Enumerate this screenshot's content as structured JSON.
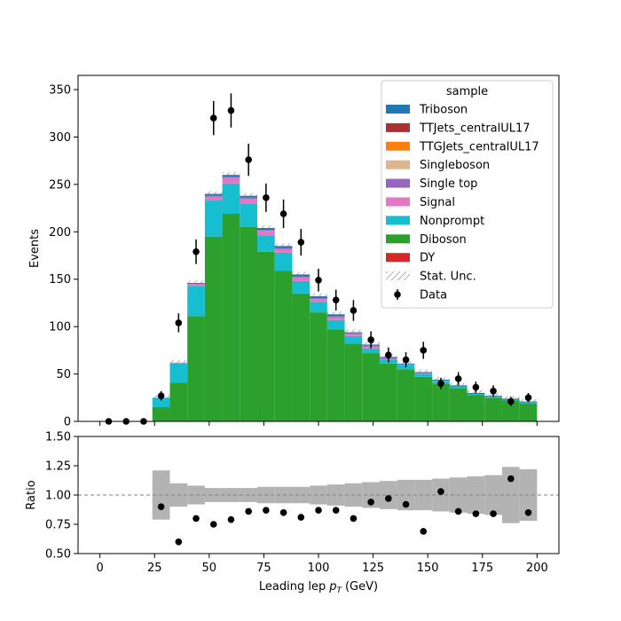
{
  "chart_data": {
    "type": "bar",
    "stacked": true,
    "bin_edges": [
      0,
      8,
      16,
      24,
      32,
      40,
      48,
      56,
      64,
      72,
      80,
      88,
      96,
      104,
      112,
      120,
      128,
      136,
      144,
      152,
      160,
      168,
      176,
      184,
      192,
      200
    ],
    "xlabel": "Leading lep",
    "xlabel_symbol": "p",
    "xlabel_subscript": "T",
    "xlabel_unit": "(GeV)",
    "ylabel": "Events",
    "ratio_ylabel": "Ratio",
    "xlim": [
      -10,
      210
    ],
    "ylim": [
      0,
      365
    ],
    "ratio_ylim": [
      0.5,
      1.5
    ],
    "x_ticks": [
      "0",
      "25",
      "50",
      "75",
      "100",
      "125",
      "150",
      "175",
      "200"
    ],
    "y_ticks": [
      "0",
      "50",
      "100",
      "150",
      "200",
      "250",
      "300",
      "350"
    ],
    "ratio_y_ticks": [
      "0.50",
      "0.75",
      "1.00",
      "1.25",
      "1.50"
    ],
    "legend": {
      "title": "sample",
      "position": "top-right",
      "entries": [
        "Triboson",
        "TTJets_centralUL17",
        "TTGJets_centralUL17",
        "Singleboson",
        "Single top",
        "Signal",
        "Nonprompt",
        "Diboson",
        "DY",
        "Stat. Unc.",
        "Data"
      ]
    },
    "series": [
      {
        "name": "DY",
        "color": "#d62728",
        "values": [
          0,
          0,
          0,
          0,
          0,
          0,
          0,
          0,
          0,
          0,
          0,
          0,
          0,
          0,
          0,
          0,
          0,
          0,
          0,
          0,
          0,
          0,
          0,
          0,
          0
        ]
      },
      {
        "name": "Diboson",
        "color": "#2ca02c",
        "values": [
          0,
          0,
          0,
          15,
          41,
          111,
          195,
          219,
          205,
          179,
          159,
          135,
          115,
          97,
          82,
          72,
          61,
          55,
          47,
          40,
          35,
          28,
          25,
          22,
          19
        ]
      },
      {
        "name": "Nonprompt",
        "color": "#17becf",
        "values": [
          0,
          0,
          0,
          10,
          20,
          32,
          38,
          32,
          25,
          17,
          19,
          13,
          11,
          10,
          8,
          5,
          4,
          4,
          3,
          2,
          2,
          1,
          1,
          1,
          1
        ]
      },
      {
        "name": "Signal",
        "color": "#e377c2",
        "values": [
          0,
          0,
          0,
          0,
          1,
          2,
          4,
          6,
          5,
          5,
          4,
          4,
          3,
          3,
          2,
          2,
          1,
          1,
          1,
          1,
          0,
          0,
          0,
          0,
          0
        ]
      },
      {
        "name": "Single top",
        "color": "#9467bd",
        "values": [
          0,
          0,
          0,
          0,
          0,
          0,
          1,
          1,
          1,
          1,
          1,
          1,
          1,
          1,
          1,
          1,
          1,
          0,
          0,
          0,
          0,
          0,
          0,
          0,
          0
        ]
      },
      {
        "name": "Singleboson",
        "color": "#dbb58d",
        "values": [
          0,
          0,
          0,
          0,
          0,
          0,
          0,
          0,
          0,
          0,
          0,
          0,
          0,
          0,
          0,
          0,
          0,
          0,
          0,
          0,
          0,
          0,
          0,
          0,
          0
        ]
      },
      {
        "name": "TTGJets_centralUL17",
        "color": "#ff7f0e",
        "values": [
          0,
          0,
          0,
          0,
          0,
          0,
          0,
          0,
          0,
          0,
          0,
          0,
          0,
          0,
          0,
          0,
          0,
          0,
          0,
          0,
          0,
          0,
          0,
          0,
          0
        ]
      },
      {
        "name": "TTJets_centralUL17",
        "color": "#a83232",
        "values": [
          0,
          0,
          0,
          0,
          0,
          0,
          0,
          0,
          0,
          0,
          0,
          0,
          0,
          0,
          0,
          0,
          0,
          0,
          0,
          0,
          0,
          0,
          0,
          0,
          0
        ]
      },
      {
        "name": "Triboson",
        "color": "#1f77b4",
        "values": [
          0,
          0,
          0,
          0,
          0,
          1,
          2,
          2,
          2,
          2,
          2,
          2,
          2,
          2,
          1,
          1,
          1,
          1,
          1,
          1,
          1,
          1,
          1,
          1,
          1
        ]
      }
    ],
    "stat_unc_totals": [
      0,
      0,
      0,
      25,
      62,
      146,
      240,
      260,
      238,
      204,
      185,
      155,
      132,
      113,
      94,
      81,
      68,
      61,
      52,
      44,
      38,
      30,
      27,
      24,
      21
    ],
    "data": {
      "x": [
        4,
        12,
        20,
        28,
        36,
        44,
        52,
        60,
        68,
        76,
        84,
        92,
        100,
        108,
        116,
        124,
        132,
        140,
        148,
        156,
        164,
        172,
        180,
        188,
        196
      ],
      "y": [
        0,
        0,
        0,
        27,
        104,
        179,
        320,
        328,
        276,
        236,
        219,
        189,
        149,
        128,
        117,
        86,
        70,
        65,
        75,
        40,
        45,
        36,
        32,
        21,
        25
      ],
      "yerr": [
        0,
        0,
        0,
        5,
        10,
        13,
        18,
        18,
        17,
        15,
        15,
        14,
        12,
        11,
        11,
        9,
        8,
        8,
        9,
        6,
        7,
        6,
        6,
        5,
        5
      ]
    },
    "ratio": {
      "x": [
        28,
        36,
        44,
        52,
        60,
        68,
        76,
        84,
        92,
        100,
        108,
        116,
        124,
        132,
        140,
        148,
        156,
        164,
        172,
        180,
        188,
        196
      ],
      "y": [
        0.9,
        0.6,
        0.8,
        0.75,
        0.79,
        0.86,
        0.87,
        0.85,
        0.81,
        0.87,
        0.87,
        0.8,
        0.94,
        0.97,
        0.92,
        0.69,
        1.03,
        0.86,
        0.84,
        0.84,
        1.14,
        0.85
      ],
      "unc": [
        0.21,
        0.1,
        0.08,
        0.06,
        0.06,
        0.06,
        0.07,
        0.07,
        0.07,
        0.08,
        0.09,
        0.1,
        0.11,
        0.12,
        0.13,
        0.13,
        0.14,
        0.15,
        0.16,
        0.17,
        0.24,
        0.22
      ]
    },
    "reference_line": 1.0,
    "grid": false
  }
}
